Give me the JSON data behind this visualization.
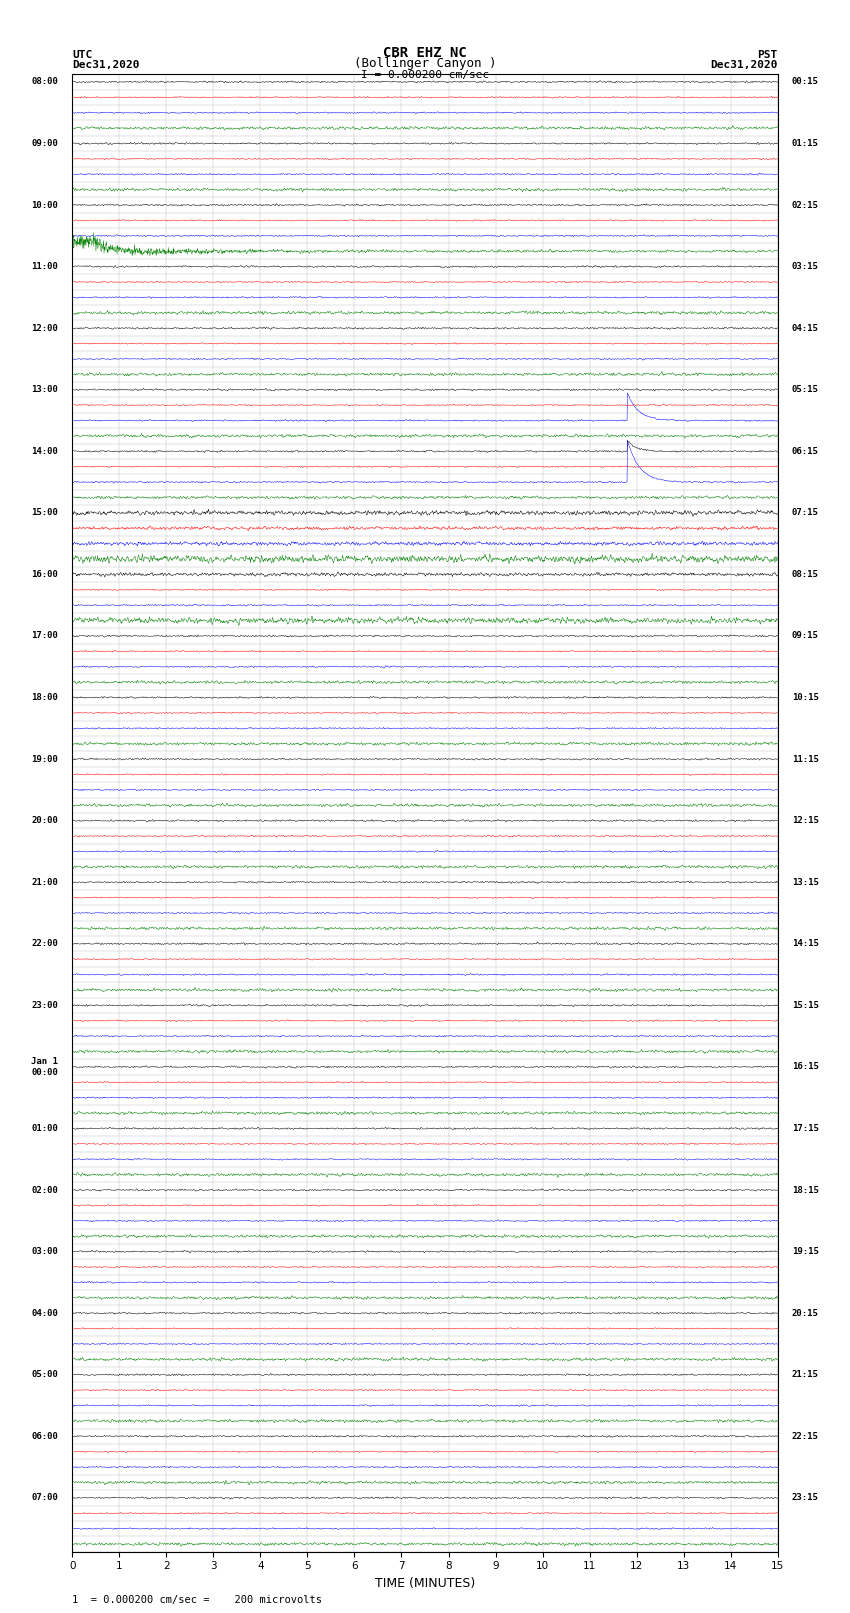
{
  "title_line1": "CBR EHZ NC",
  "title_line2": "(Bollinger Canyon )",
  "scale_text": "I = 0.000200 cm/sec",
  "footer_text": "1  = 0.000200 cm/sec =    200 microvolts",
  "xlabel": "TIME (MINUTES)",
  "left_times_labeled": [
    "08:00",
    "09:00",
    "10:00",
    "11:00",
    "12:00",
    "13:00",
    "14:00",
    "15:00",
    "16:00",
    "17:00",
    "18:00",
    "19:00",
    "20:00",
    "21:00",
    "22:00",
    "23:00",
    "Jan 1\n00:00",
    "01:00",
    "02:00",
    "03:00",
    "04:00",
    "05:00",
    "06:00",
    "07:00"
  ],
  "right_times_labeled": [
    "00:15",
    "01:15",
    "02:15",
    "03:15",
    "04:15",
    "05:15",
    "06:15",
    "07:15",
    "08:15",
    "09:15",
    "10:15",
    "11:15",
    "12:15",
    "13:15",
    "14:15",
    "15:15",
    "16:15",
    "17:15",
    "18:15",
    "19:15",
    "20:15",
    "21:15",
    "22:15",
    "23:15"
  ],
  "num_hours": 24,
  "rows_per_hour": 4,
  "colors_cycle": [
    "black",
    "red",
    "blue",
    "green"
  ],
  "background_color": "white",
  "grid_color": "#bbbbbb",
  "axis_color": "black",
  "xlim": [
    0,
    15
  ],
  "xticks": [
    0,
    1,
    2,
    3,
    4,
    5,
    6,
    7,
    8,
    9,
    10,
    11,
    12,
    13,
    14,
    15
  ],
  "seed": 42,
  "base_amp": 0.08,
  "green_amp_mult": 2.0,
  "black_amp_mult": 1.2,
  "red_amp_mult": 0.9,
  "blue_amp_mult": 1.0
}
